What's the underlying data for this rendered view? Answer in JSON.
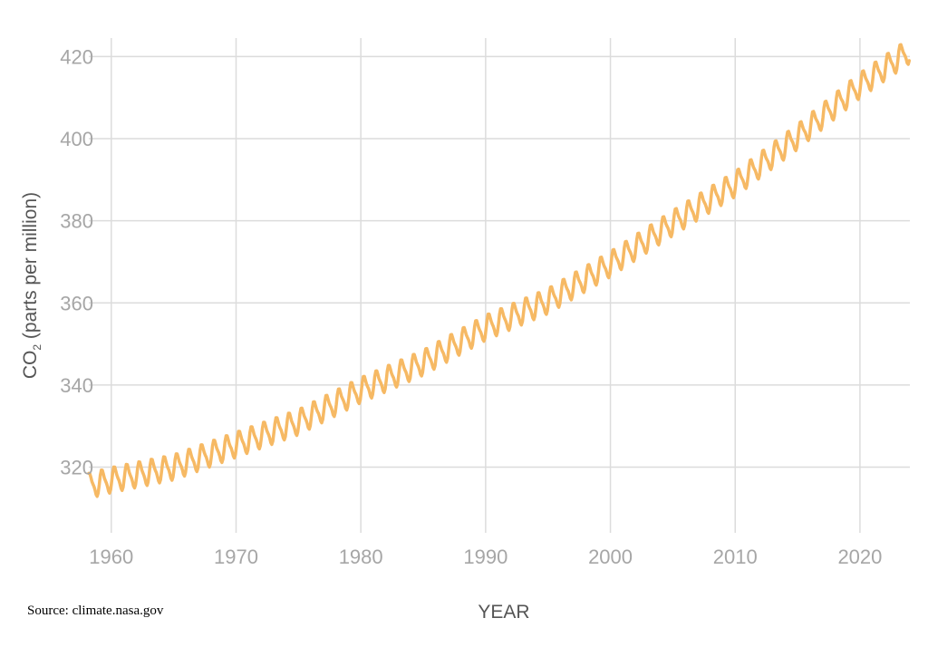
{
  "source_note": "Source: climate.nasa.gov",
  "chart_data": {
    "type": "line",
    "xlabel": "YEAR",
    "ylabel_main": "CO",
    "ylabel_sub": "2",
    "ylabel_rest": " (parts per million)",
    "xlim": [
      1958.2,
      2024.0
    ],
    "ylim": [
      304.0,
      424.5
    ],
    "x_ticks": [
      1960,
      1970,
      1980,
      1990,
      2000,
      2010,
      2020
    ],
    "y_ticks": [
      320,
      340,
      360,
      380,
      400,
      420
    ],
    "grid": true,
    "colors": {
      "series": "#f6b964",
      "grid": "#dcdcdc",
      "tick_label": "#a6a6a6",
      "axis_title": "#555555"
    },
    "series": [
      {
        "trend": {
          "x": [
            1958,
            1960,
            1965,
            1970,
            1975,
            1980,
            1985,
            1990,
            1995,
            2000,
            2005,
            2010,
            2015,
            2020,
            2024
          ],
          "y": [
            315.3,
            316.9,
            320.0,
            325.5,
            331.0,
            338.8,
            345.5,
            354.0,
            360.5,
            369.5,
            379.5,
            389.0,
            400.5,
            413.0,
            421.5
          ]
        },
        "seasonal_amplitude_ppm": 6.5
      }
    ]
  }
}
